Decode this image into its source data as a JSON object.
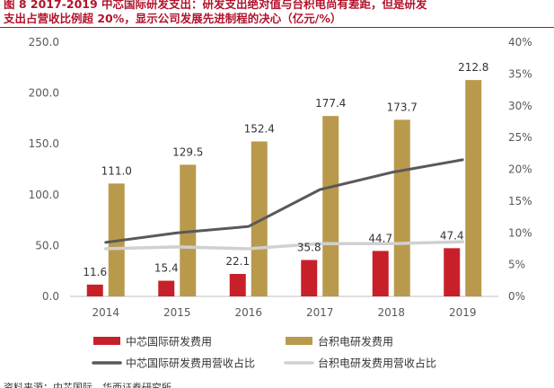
{
  "figure": {
    "title_line1": "图 8 2017-2019 中芯国际研发支出：研发支出绝对值与台积电尚有差距，但是研发",
    "title_line2": "支出占营收比例超 20%，显示公司发展先进制程的决心（亿元/%）",
    "source": "资料来源：中芯国际，华西证券研究所"
  },
  "chart_data": {
    "type": "bar",
    "categories": [
      "2014",
      "2015",
      "2016",
      "2017",
      "2018",
      "2019"
    ],
    "series": [
      {
        "name": "中芯国际研发费用",
        "kind": "bar",
        "axis": "left",
        "color": "#c8202a",
        "values": [
          11.6,
          15.4,
          22.1,
          35.8,
          44.7,
          47.4
        ]
      },
      {
        "name": "台积电研发费用",
        "kind": "bar",
        "axis": "left",
        "color": "#b99a4d",
        "values": [
          111.0,
          129.5,
          152.4,
          177.4,
          173.7,
          212.8
        ]
      },
      {
        "name": "中芯国际研发费用营收占比",
        "kind": "line",
        "axis": "right",
        "color": "#595959",
        "values": [
          8.5,
          10.0,
          11.0,
          16.8,
          19.5,
          21.5
        ]
      },
      {
        "name": "台积电研发费用营收占比",
        "kind": "line",
        "axis": "right",
        "color": "#d0d0d0",
        "values": [
          7.5,
          7.8,
          7.5,
          8.3,
          8.3,
          8.6
        ]
      }
    ],
    "data_labels": {
      "中芯国际研发费用": [
        "11.6",
        "15.4",
        "22.1",
        "35.8",
        "44.7",
        "47.4"
      ],
      "台积电研发费用": [
        "111.0",
        "129.5",
        "152.4",
        "177.4",
        "173.7",
        "212.8"
      ]
    },
    "left_axis": {
      "ticks": [
        "0.0",
        "50.0",
        "100.0",
        "150.0",
        "200.0",
        "250.0"
      ],
      "ylim": [
        0,
        250
      ]
    },
    "right_axis": {
      "ticks": [
        "0%",
        "5%",
        "10%",
        "15%",
        "20%",
        "25%",
        "30%",
        "35%",
        "40%"
      ],
      "ylim": [
        0,
        40
      ]
    },
    "legend_position": "bottom",
    "grid": false
  }
}
